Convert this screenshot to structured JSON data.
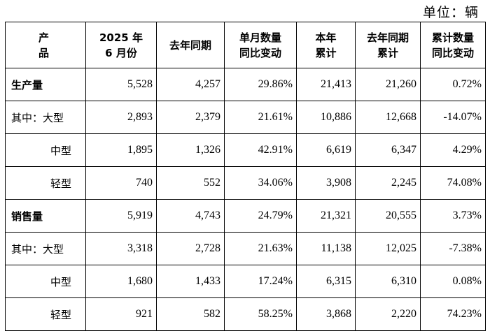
{
  "unit_label": "单位：辆",
  "header": {
    "product": "产品",
    "col2": [
      "2025 年",
      "6 月份"
    ],
    "col3": [
      "去年同期"
    ],
    "col4": [
      "单月数量",
      "同比变动"
    ],
    "col5": [
      "本年",
      "累计"
    ],
    "col6": [
      "去年同期",
      "累计"
    ],
    "col7": [
      "累计数量",
      "同比变动"
    ]
  },
  "rows": [
    {
      "label": "生产量",
      "style": "bold",
      "values": [
        "5,528",
        "4,257",
        "29.86%",
        "21,413",
        "21,260",
        "0.72%"
      ]
    },
    {
      "label": "其中：大型",
      "style": "sub",
      "values": [
        "2,893",
        "2,379",
        "21.61%",
        "10,886",
        "12,668",
        "-14.07%"
      ]
    },
    {
      "label": "中型",
      "style": "indent",
      "values": [
        "1,895",
        "1,326",
        "42.91%",
        "6,619",
        "6,347",
        "4.29%"
      ]
    },
    {
      "label": "轻型",
      "style": "indent",
      "values": [
        "740",
        "552",
        "34.06%",
        "3,908",
        "2,245",
        "74.08%"
      ]
    },
    {
      "label": "销售量",
      "style": "bold",
      "values": [
        "5,919",
        "4,743",
        "24.79%",
        "21,321",
        "20,555",
        "3.73%"
      ]
    },
    {
      "label": "其中：大型",
      "style": "sub",
      "values": [
        "3,318",
        "2,728",
        "21.63%",
        "11,138",
        "12,025",
        "-7.38%"
      ]
    },
    {
      "label": "中型",
      "style": "indent",
      "values": [
        "1,680",
        "1,433",
        "17.24%",
        "6,315",
        "6,310",
        "0.08%"
      ]
    },
    {
      "label": "轻型",
      "style": "indent",
      "values": [
        "921",
        "582",
        "58.25%",
        "3,868",
        "2,220",
        "74.23%"
      ]
    }
  ]
}
